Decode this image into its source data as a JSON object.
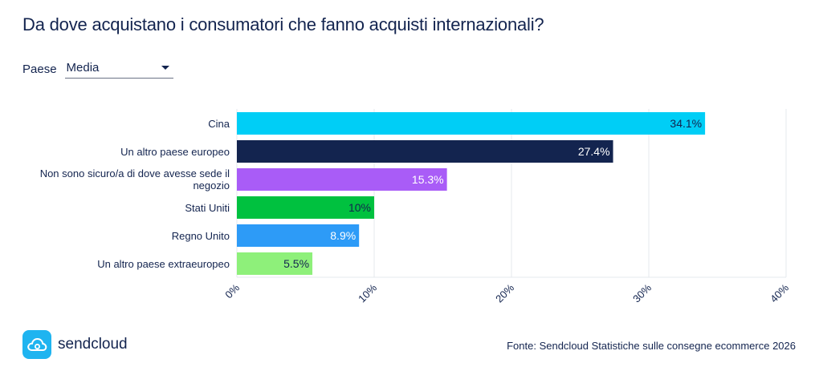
{
  "header": {
    "title": "Da dove acquistano i consumatori che fanno acquisti internazionali?"
  },
  "filter": {
    "label": "Paese",
    "selected": "Media"
  },
  "chart_data": {
    "type": "bar",
    "orientation": "horizontal",
    "categories": [
      "Cina",
      "Un altro paese europeo",
      "Non sono sicuro/a di dove avesse sede il negozio",
      "Stati Uniti",
      "Regno Unito",
      "Un altro paese extraeuropeo"
    ],
    "values": [
      34.1,
      27.4,
      15.3,
      10,
      8.9,
      5.5
    ],
    "value_labels": [
      "34.1%",
      "27.4%",
      "15.3%",
      "10%",
      "8.9%",
      "5.5%"
    ],
    "colors": [
      "#00cef6",
      "#13244f",
      "#a95cf7",
      "#00c13f",
      "#2d9bf7",
      "#8ef07a"
    ],
    "label_colors": [
      "#13244f",
      "#ffffff",
      "#ffffff",
      "#13244f",
      "#ffffff",
      "#13244f"
    ],
    "xlim": [
      0,
      40
    ],
    "xticks": [
      0,
      10,
      20,
      30,
      40
    ],
    "xtick_labels": [
      "0%",
      "10%",
      "20%",
      "30%",
      "40%"
    ],
    "grid": true,
    "legend": "none"
  },
  "footer": {
    "brand": "sendcloud",
    "logo_icon": "cloud-icon",
    "source": "Fonte: Sendcloud Statistiche sulle consegne ecommerce 2026"
  }
}
